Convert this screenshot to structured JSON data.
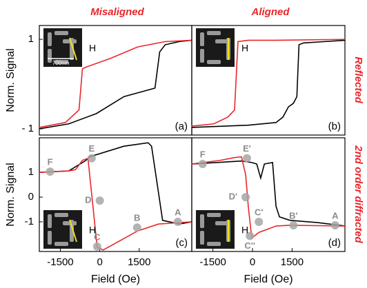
{
  "column_titles": [
    "Misaligned",
    "Aligned"
  ],
  "row_labels": [
    "Reflected",
    "2nd order diffracted"
  ],
  "chart_data": [
    {
      "type": "line",
      "panel_label": "(a)",
      "ylabel": "Norm. Signal",
      "inset_label": "H",
      "scale_bar": "700nm",
      "xlim": [
        -2300,
        3500
      ],
      "ylim": [
        -1.14,
        1.31
      ],
      "yticks": [
        1,
        {
          "value": -1,
          "label": "- 1"
        }
      ],
      "series": [
        {
          "color": "#000000",
          "x": [
            -2300,
            -1180,
            -130,
            920,
            2100,
            2280,
            2490,
            3020,
            3500
          ],
          "values": [
            -1,
            -0.89,
            -0.66,
            -0.28,
            -0.09,
            0.72,
            0.88,
            0.95,
            0.98
          ]
        },
        {
          "color": "#e8262b",
          "x": [
            -2300,
            -1310,
            -790,
            -660,
            -520,
            390,
            1440,
            2490,
            3500
          ],
          "values": [
            -0.97,
            -0.86,
            -0.58,
            0.34,
            0.38,
            0.57,
            0.83,
            0.95,
            0.98
          ]
        }
      ]
    },
    {
      "type": "line",
      "panel_label": "(b)",
      "inset_label": "H",
      "xlim": [
        -2300,
        3500
      ],
      "ylim": [
        -1.14,
        1.31
      ],
      "series": [
        {
          "color": "#000000",
          "x": [
            -2310,
            -160,
            890,
            1150,
            1360,
            1550,
            1680,
            1760,
            1940,
            2730,
            3520
          ],
          "values": [
            -0.97,
            -0.92,
            -0.86,
            -0.74,
            -0.51,
            -0.43,
            -0.28,
            0.88,
            0.92,
            0.95,
            0.98
          ]
        },
        {
          "color": "#e8262b",
          "x": [
            -2310,
            -1470,
            -940,
            -680,
            -550,
            -160,
            890,
            3520
          ],
          "values": [
            -0.94,
            -0.89,
            -0.74,
            -0.58,
            0.95,
            0.98,
            0.98,
            1
          ]
        }
      ]
    },
    {
      "type": "line",
      "panel_label": "(c)",
      "ylabel": "Norm. Signal",
      "xlabel": "Field (Oe)",
      "inset_label": "H",
      "xlim": [
        -2300,
        3500
      ],
      "ylim": [
        -2.2,
        2.4
      ],
      "xticks": [
        -1500,
        0,
        1500
      ],
      "yticks": [
        1,
        0,
        -1
      ],
      "series": [
        {
          "color": "#000000",
          "x": [
            -2300,
            -1180,
            -520,
            -390,
            920,
            1840,
            1970,
            2390,
            3020,
            3500
          ],
          "values": [
            1,
            1.06,
            1.49,
            1.63,
            2.06,
            2.2,
            2.06,
            -0.94,
            -1.09,
            -1
          ]
        },
        {
          "color": "#e8262b",
          "x": [
            -2300,
            -1180,
            -920,
            -660,
            -450,
            -260,
            -100,
            130,
            1440,
            2230,
            3500
          ],
          "values": [
            1,
            1.06,
            1.11,
            1.49,
            1.57,
            -0.37,
            -2.03,
            -2.14,
            -1.37,
            -1.09,
            -1
          ]
        }
      ],
      "points": [
        {
          "label": "F",
          "x": -1890,
          "y": 1.03
        },
        {
          "label": "E",
          "x": -310,
          "y": 1.57
        },
        {
          "label": "D",
          "x": 0,
          "y": -0.14
        },
        {
          "label": "C",
          "x": -100,
          "y": -2.0
        },
        {
          "label": "B",
          "x": 1420,
          "y": -1.23
        },
        {
          "label": "A",
          "x": 2970,
          "y": -1
        }
      ]
    },
    {
      "type": "line",
      "panel_label": "(d)",
      "xlabel": "Field (Oe)",
      "inset_label": "H",
      "xlim": [
        -2300,
        3500
      ],
      "ylim": [
        -2.2,
        2.4
      ],
      "xticks": [
        -1500,
        0,
        1500
      ],
      "series": [
        {
          "color": "#000000",
          "x": [
            -2310,
            -420,
            -30,
            160,
            310,
            450,
            760,
            890,
            1020,
            1420,
            2470,
            3520
          ],
          "values": [
            1.34,
            1.46,
            1.4,
            1.34,
            0.77,
            1.34,
            1.4,
            -0.37,
            -0.8,
            -0.94,
            -1.03,
            -1.17
          ]
        },
        {
          "color": "#e8262b",
          "x": [
            -2310,
            -1210,
            -680,
            -420,
            -260,
            -160,
            -30,
            240,
            890,
            1420,
            3520
          ],
          "values": [
            1.34,
            1.49,
            1.6,
            1.63,
            0.91,
            -0.37,
            -1.66,
            -1.43,
            -1.17,
            -1.14,
            -1.17
          ]
        }
      ],
      "points": [
        {
          "label": "F",
          "x": -1890,
          "y": 1.34
        },
        {
          "label": "E'",
          "x": -210,
          "y": 1.57
        },
        {
          "label": "D'",
          "x": -260,
          "y": 0
        },
        {
          "label": "C''",
          "x": -100,
          "y": -1.57
        },
        {
          "label": "C'",
          "x": 240,
          "y": -1
        },
        {
          "label": "B'",
          "x": 1550,
          "y": -1.14
        },
        {
          "label": "A",
          "x": 3130,
          "y": -1.14
        }
      ]
    }
  ]
}
